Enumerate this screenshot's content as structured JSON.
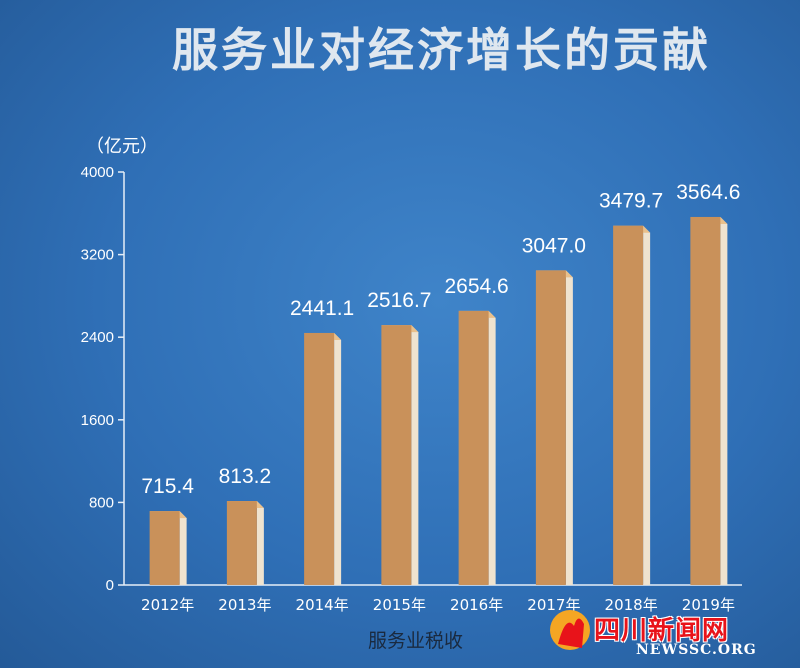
{
  "colors": {
    "bar": "#c9915a",
    "bar_top": "#e9c08b",
    "bar_side": "#efe3cf",
    "axis": "#e6eef7",
    "background": "#3478c0"
  },
  "chart_data": {
    "type": "bar",
    "title": "服务业对经济增长的贡献",
    "unit": "（亿元）",
    "xlabel": "服务业税收",
    "ylabel": "",
    "categories": [
      "2012年",
      "2013年",
      "2014年",
      "2015年",
      "2016年",
      "2017年",
      "2018年",
      "2019年"
    ],
    "values": [
      715.4,
      813.2,
      2441.1,
      2516.7,
      2654.6,
      3047.0,
      3479.7,
      3564.6
    ],
    "value_labels": [
      "715.4",
      "813.2",
      "2441.1",
      "2516.7",
      "2654.6",
      "3047.0",
      "3479.7",
      "3564.6"
    ],
    "yticks": [
      "0",
      "800",
      "1600",
      "2400",
      "3200",
      "4000"
    ],
    "ylim": [
      0,
      4000
    ],
    "grid": false,
    "legend": "none"
  },
  "watermark": {
    "name": "四川新闻网",
    "domain": "NEWSSC.ORG"
  }
}
